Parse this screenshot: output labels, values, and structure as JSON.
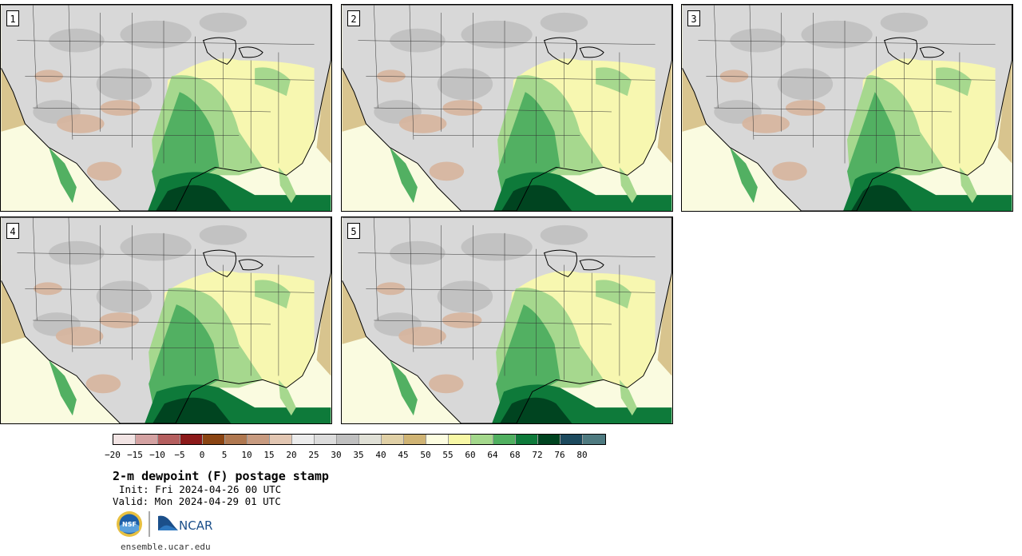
{
  "panels": [
    {
      "label": "1"
    },
    {
      "label": "2"
    },
    {
      "label": "3"
    },
    {
      "label": "4"
    },
    {
      "label": "5"
    }
  ],
  "legend": {
    "colors": [
      "#f2e4e4",
      "#d4a2a2",
      "#b55f5f",
      "#8c1a1a",
      "#8b4513",
      "#b07850",
      "#c89b80",
      "#e2c6b2",
      "#ececec",
      "#dcdcdc",
      "#c0c0c0",
      "#e0e0d6",
      "#e0d0a6",
      "#d0b474",
      "#fdfde0",
      "#f8f8a6",
      "#a4d88c",
      "#50b060",
      "#0e7a3a",
      "#004420",
      "#1c4a5e",
      "#4e7a80"
    ],
    "ticks": [
      "−20",
      "−15",
      "−10",
      "−5",
      "0",
      "5",
      "10",
      "15",
      "20",
      "25",
      "30",
      "35",
      "40",
      "45",
      "50",
      "55",
      "60",
      "64",
      "68",
      "72",
      "76",
      "80"
    ]
  },
  "title": "2-m dewpoint (F) postage stamp",
  "init": "Init: Fri 2024-04-26 00 UTC",
  "valid": "Valid: Mon 2024-04-29 01 UTC",
  "logos": {
    "nsf": "NSF",
    "ncar": "NCAR"
  },
  "site": "ensemble.ucar.edu"
}
